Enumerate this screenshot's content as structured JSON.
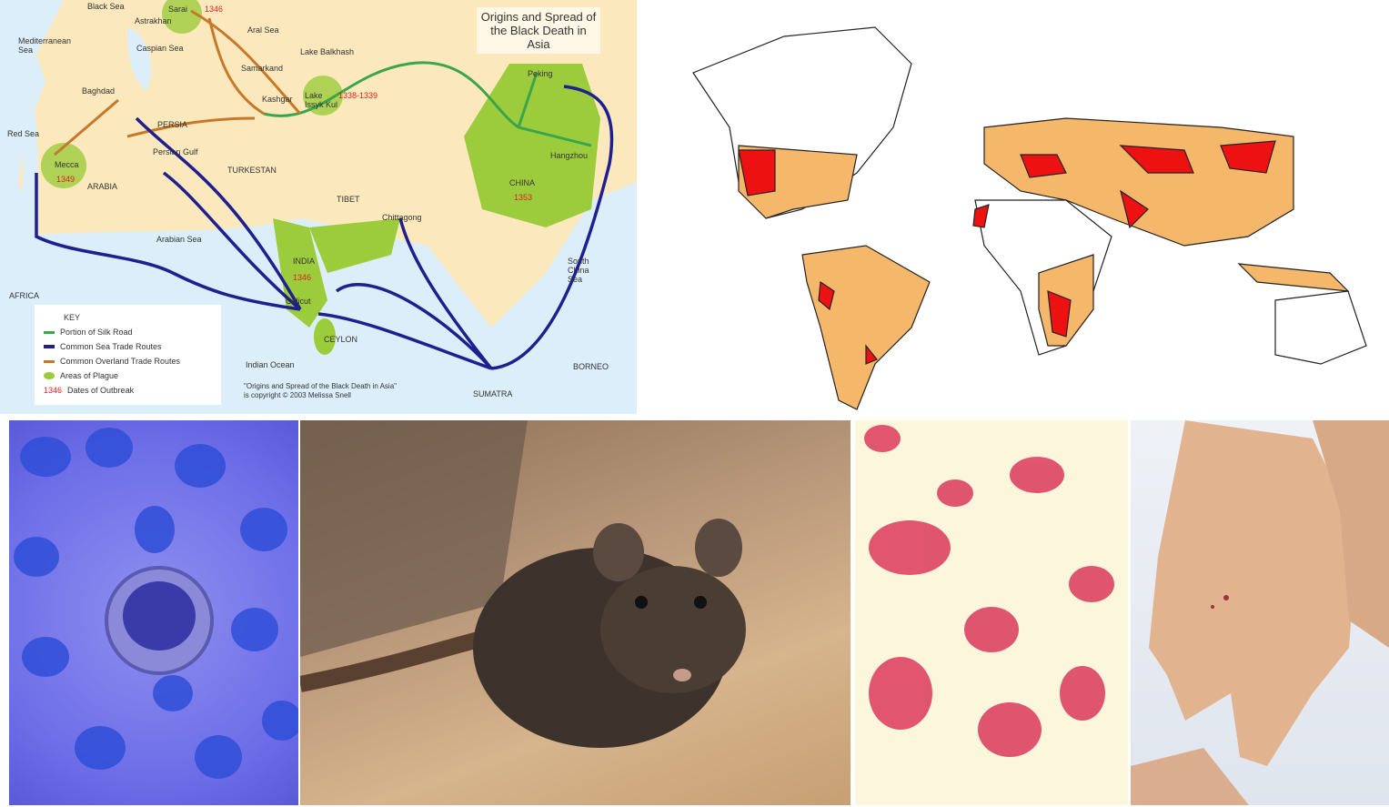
{
  "asia_map": {
    "title": "Origins and Spread of the Black Death in Asia",
    "places": [
      "Black Sea",
      "Sarai",
      "Astrakhan",
      "Aral Sea",
      "Mediterranean Sea",
      "Caspian Sea",
      "Lake Balkhash",
      "Samarkand",
      "Kashgar",
      "Lake Issyk Kul",
      "Baghdad",
      "PERSIA",
      "Red Sea",
      "Mecca",
      "ARABIA",
      "Persian Gulf",
      "TURKESTAN",
      "TIBET",
      "Peking",
      "Hangzhou",
      "CHINA",
      "Chittagong",
      "Arabian Sea",
      "INDIA",
      "Calicut",
      "CEYLON",
      "AFRICA",
      "South China Sea",
      "Indian Ocean",
      "BORNEO",
      "SUMATRA"
    ],
    "dates": {
      "sarai": "1346",
      "issyk_kul": "1338-1339",
      "mecca": "1349",
      "china": "1353",
      "india": "1346"
    },
    "key": {
      "heading": "KEY",
      "items": [
        {
          "label": "Portion of Silk Road",
          "color": "#3aa54a"
        },
        {
          "label": "Common Sea Trade Routes",
          "color": "#1f1f8f"
        },
        {
          "label": "Common Overland Trade Routes",
          "color": "#c8782a"
        },
        {
          "label": "Areas of Plague",
          "color": "#9ccc3c"
        },
        {
          "label": "Dates of Outbreak",
          "color": "#e03030",
          "prefix": "1346"
        }
      ]
    },
    "credit": [
      "\"Origins and Spread of the Black Death in Asia\"",
      "is copyright © 2003 Melissa Snell"
    ]
  },
  "colors": {
    "plague_focus": "#ee1111",
    "plague_area": "#f5b76a",
    "land_plague_asia": "#9ccc3c"
  }
}
